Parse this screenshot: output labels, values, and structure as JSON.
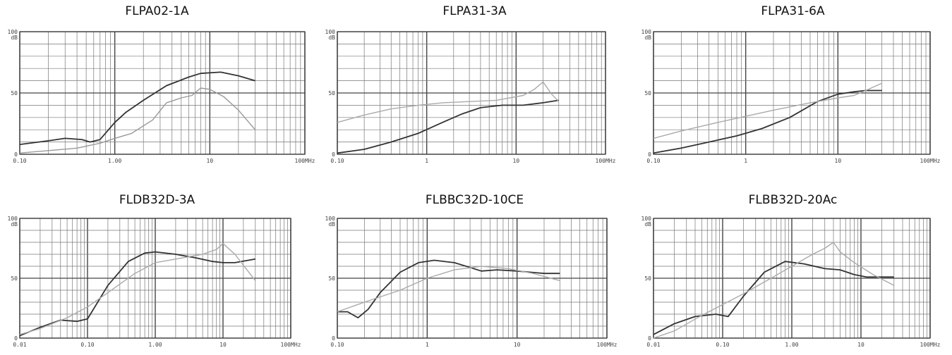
{
  "chart_data": [
    {
      "type": "line",
      "title": "FLPA02-1A",
      "xscale": "log",
      "xlim": [
        0.1,
        100
      ],
      "ylim": [
        0,
        100
      ],
      "y_unit": "dB",
      "x_ticks": [
        "0.10",
        "1.00",
        "10",
        "100MHz"
      ],
      "y_ticks": [
        "0",
        "50",
        "100"
      ],
      "grid": true,
      "series": [
        {
          "color": "#333333",
          "x": [
            0.1,
            0.2,
            0.3,
            0.45,
            0.55,
            0.7,
            1.0,
            1.3,
            2.0,
            3.5,
            6,
            8,
            13,
            20,
            30
          ],
          "y": [
            8,
            11,
            13,
            12,
            10,
            12,
            26,
            34,
            44,
            56,
            63,
            66,
            67,
            64,
            60
          ]
        },
        {
          "color": "#999999",
          "x": [
            0.1,
            0.2,
            0.4,
            0.7,
            1.0,
            1.5,
            2.5,
            3.5,
            5,
            6.5,
            8,
            10,
            14,
            20,
            30
          ],
          "y": [
            1,
            3,
            5,
            9,
            13,
            17,
            28,
            42,
            46,
            48,
            54,
            53,
            47,
            36,
            20
          ]
        }
      ]
    },
    {
      "type": "line",
      "title": "FLPA31-3A",
      "xscale": "log",
      "xlim": [
        0.1,
        100
      ],
      "ylim": [
        0,
        100
      ],
      "y_unit": "dB",
      "x_ticks": [
        "0.10",
        "1",
        "10",
        "100MHz"
      ],
      "y_ticks": [
        "0",
        "50",
        "100"
      ],
      "grid": true,
      "series": [
        {
          "color": "#333333",
          "x": [
            0.1,
            0.2,
            0.4,
            0.8,
            1.5,
            2.5,
            4,
            7,
            12,
            20,
            30
          ],
          "y": [
            1,
            4,
            10,
            17,
            26,
            33,
            38,
            40,
            40,
            42,
            44
          ]
        },
        {
          "color": "#aaaaaa",
          "x": [
            0.1,
            0.2,
            0.4,
            0.8,
            1.5,
            3,
            6,
            12,
            16,
            20,
            25,
            30
          ],
          "y": [
            26,
            32,
            37,
            40,
            42,
            43,
            44,
            48,
            53,
            59,
            49,
            43
          ]
        }
      ]
    },
    {
      "type": "line",
      "title": "FLPA31-6A",
      "xscale": "log",
      "xlim": [
        0.1,
        100
      ],
      "ylim": [
        0,
        100
      ],
      "y_unit": "dB",
      "x_ticks": [
        "0.10",
        "1",
        "10",
        "100MHz"
      ],
      "y_ticks": [
        "0",
        "50",
        "100"
      ],
      "grid": true,
      "series": [
        {
          "color": "#333333",
          "x": [
            0.1,
            0.2,
            0.4,
            0.8,
            1.5,
            3,
            6,
            10,
            15,
            20,
            30
          ],
          "y": [
            1,
            5,
            10,
            15,
            21,
            30,
            43,
            49,
            51,
            52,
            52
          ]
        },
        {
          "color": "#aaaaaa",
          "x": [
            0.1,
            0.2,
            0.5,
            1.0,
            2,
            5,
            10,
            15,
            20,
            30
          ],
          "y": [
            13,
            19,
            26,
            31,
            36,
            42,
            46,
            48,
            52,
            58
          ]
        }
      ]
    },
    {
      "type": "line",
      "title": "FLDB32D-3A",
      "xscale": "log",
      "xlim": [
        0.01,
        100
      ],
      "ylim": [
        0,
        100
      ],
      "y_unit": "dB",
      "x_ticks": [
        "0.01",
        "0.10",
        "1.00",
        "10",
        "100MHz"
      ],
      "y_ticks": [
        "0",
        "50",
        "100"
      ],
      "grid": true,
      "series": [
        {
          "color": "#333333",
          "x": [
            0.01,
            0.02,
            0.04,
            0.07,
            0.1,
            0.2,
            0.4,
            0.7,
            1.0,
            2,
            4,
            7,
            10,
            15,
            30
          ],
          "y": [
            2,
            9,
            15,
            14,
            16,
            44,
            64,
            71,
            72,
            70,
            67,
            64,
            63,
            63,
            66
          ]
        },
        {
          "color": "#aaaaaa",
          "x": [
            0.01,
            0.02,
            0.05,
            0.1,
            0.2,
            0.5,
            1.0,
            2,
            5,
            8,
            10,
            15,
            30
          ],
          "y": [
            3,
            8,
            17,
            26,
            38,
            54,
            63,
            66,
            70,
            74,
            79,
            70,
            48
          ]
        }
      ]
    },
    {
      "type": "line",
      "title": "FLBBC32D-10CE",
      "xscale": "log",
      "xlim": [
        0.1,
        100
      ],
      "ylim": [
        0,
        100
      ],
      "y_unit": "dB",
      "x_ticks": [
        "0.10",
        "1",
        "10",
        "100MHz"
      ],
      "y_ticks": [
        "0",
        "50",
        "100"
      ],
      "grid": true,
      "series": [
        {
          "color": "#333333",
          "x": [
            0.1,
            0.13,
            0.17,
            0.22,
            0.3,
            0.5,
            0.8,
            1.2,
            2,
            3,
            4,
            6,
            10,
            20,
            30
          ],
          "y": [
            22,
            22,
            17,
            24,
            38,
            55,
            63,
            65,
            63,
            59,
            56,
            57,
            56,
            54,
            54
          ]
        },
        {
          "color": "#aaaaaa",
          "x": [
            0.1,
            0.2,
            0.5,
            1.0,
            2,
            4,
            8,
            15,
            30
          ],
          "y": [
            22,
            30,
            40,
            50,
            57,
            60,
            58,
            54,
            48
          ]
        }
      ]
    },
    {
      "type": "line",
      "title": "FLBB32D-20Ac",
      "xscale": "log",
      "xlim": [
        0.01,
        100
      ],
      "ylim": [
        0,
        100
      ],
      "y_unit": "dB",
      "x_ticks": [
        "0.01",
        "0.10",
        "1.00",
        "10",
        "100MHz"
      ],
      "y_ticks": [
        "0",
        "50",
        "100"
      ],
      "grid": true,
      "series": [
        {
          "color": "#333333",
          "x": [
            0.01,
            0.02,
            0.04,
            0.08,
            0.12,
            0.2,
            0.4,
            0.8,
            1.5,
            3,
            5,
            8,
            12,
            30
          ],
          "y": [
            3,
            12,
            18,
            20,
            18,
            35,
            55,
            64,
            62,
            58,
            57,
            53,
            51,
            51
          ]
        },
        {
          "color": "#aaaaaa",
          "x": [
            0.01,
            0.02,
            0.05,
            0.1,
            0.2,
            0.5,
            1.0,
            2,
            3,
            4,
            5,
            8,
            15,
            30
          ],
          "y": [
            0,
            6,
            19,
            28,
            37,
            50,
            60,
            70,
            75,
            80,
            72,
            63,
            53,
            44
          ]
        }
      ]
    }
  ]
}
